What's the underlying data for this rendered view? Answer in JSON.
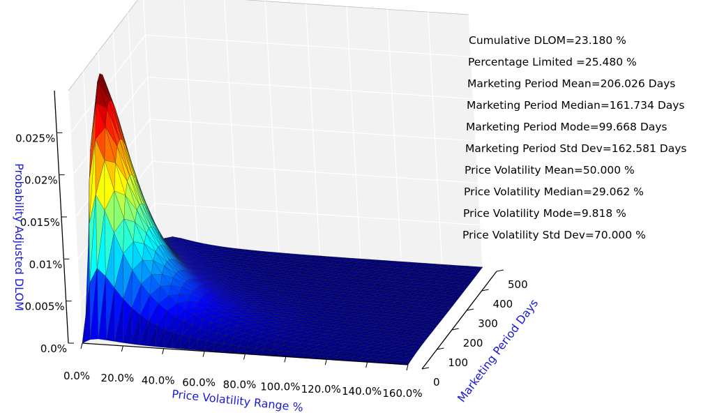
{
  "chart_data": {
    "type": "surface",
    "title": "",
    "xlabel": "Price Volatility Range %",
    "ylabel": "Marketing Period Days",
    "zlabel": "Probability Adjusted DLOM",
    "x_ticks": [
      "0.0%",
      "20.0%",
      "40.0%",
      "60.0%",
      "80.0%",
      "100.0%",
      "120.0%",
      "140.0%",
      "160.0%"
    ],
    "y_ticks": [
      "0",
      "100",
      "200",
      "300",
      "400",
      "500"
    ],
    "z_ticks": [
      "0.0%",
      "0.005%",
      "0.01%",
      "0.015%",
      "0.02%",
      "0.025%"
    ],
    "xlim": [
      0,
      160
    ],
    "ylim": [
      0,
      500
    ],
    "zlim": [
      0,
      0.03
    ],
    "peak": {
      "x": 10,
      "y": 100,
      "z": 0.0285
    },
    "grid": true,
    "colormap": "jet"
  },
  "stats": [
    "Cumulative DLOM=23.180 %",
    "Percentage Limited =25.480 %",
    "Marketing Period Mean=206.026 Days",
    "Marketing Period Median=161.734 Days",
    "Marketing Period Mode=99.668 Days",
    "Marketing Period Std Dev=162.581 Days",
    "Price Volatility Mean=50.000 %",
    "Price Volatility Median=29.062 %",
    "Price Volatility Mode=9.818 %",
    "Price Volatility Std Dev=70.000 %"
  ]
}
